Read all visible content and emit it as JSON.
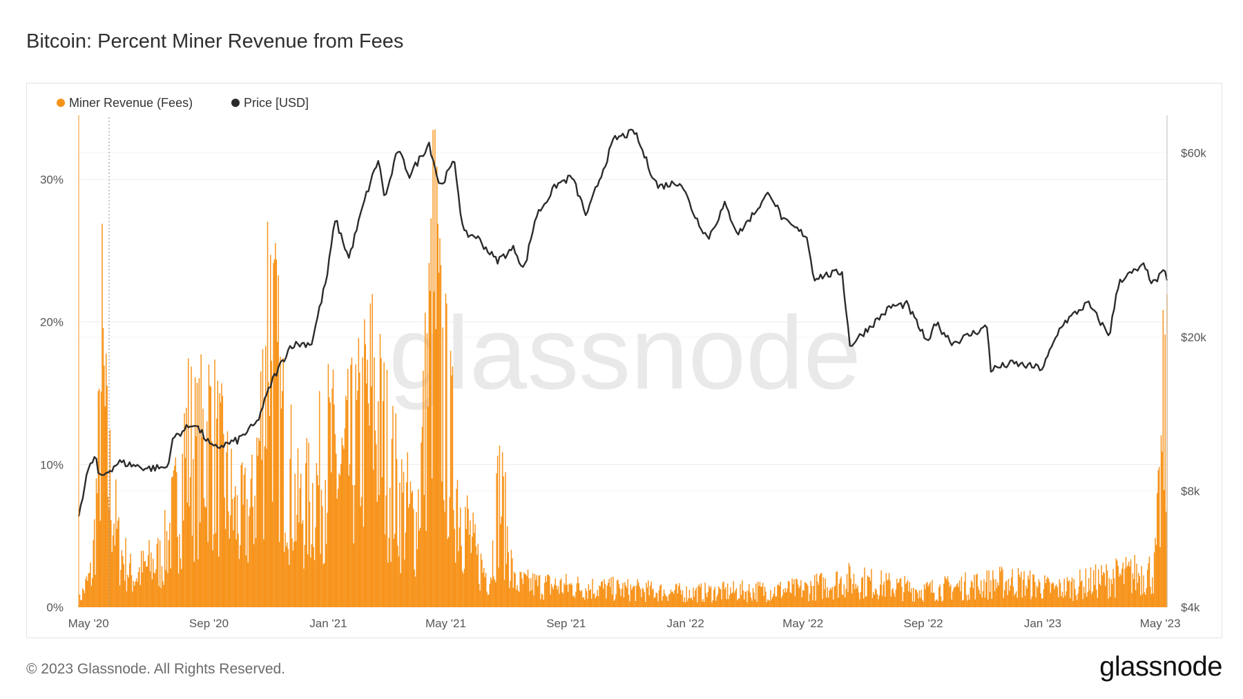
{
  "title": "Bitcoin: Percent Miner Revenue from Fees",
  "footer": "© 2023 Glassnode. All Rights Reserved.",
  "brand": "glassnode",
  "watermark": "glassnode",
  "colors": {
    "fees": "#f7931a",
    "price": "#2b2b2b",
    "grid": "#ececec"
  },
  "chart_data": {
    "type": "bar+line",
    "title": "Bitcoin: Percent Miner Revenue from Fees",
    "legend": [
      {
        "name": "Miner Revenue (Fees)",
        "color": "#f7931a"
      },
      {
        "name": "Price [USD]",
        "color": "#2b2b2b"
      }
    ],
    "x_ticks": [
      "May '20",
      "Sep '20",
      "Jan '21",
      "May '21",
      "Sep '21",
      "Jan '22",
      "May '22",
      "Sep '22",
      "Jan '23",
      "May '23"
    ],
    "x_range": [
      "2020-04-21",
      "2023-05-08"
    ],
    "y_left": {
      "label": "Miner Revenue (Fees)",
      "ticks": [
        "0%",
        "10%",
        "20%",
        "30%"
      ],
      "values": [
        0,
        10,
        20,
        30
      ],
      "ylim": [
        0,
        34.5
      ]
    },
    "y_right": {
      "label": "Price [USD]",
      "scale": "log",
      "ticks": [
        "$4k",
        "$8k",
        "$20k",
        "$60k"
      ],
      "values": [
        4000,
        8000,
        20000,
        60000
      ],
      "ylim": [
        4000,
        75000
      ]
    },
    "fees_percent_keypoints": [
      [
        "2020-04-21",
        0.5
      ],
      [
        "2020-05-05",
        3
      ],
      [
        "2020-05-12",
        13
      ],
      [
        "2020-05-15",
        20.5
      ],
      [
        "2020-05-20",
        12
      ],
      [
        "2020-06-01",
        5
      ],
      [
        "2020-06-15",
        2.5
      ],
      [
        "2020-07-01",
        3.5
      ],
      [
        "2020-07-15",
        4
      ],
      [
        "2020-08-01",
        9
      ],
      [
        "2020-08-10",
        14
      ],
      [
        "2020-08-20",
        12
      ],
      [
        "2020-09-01",
        15
      ],
      [
        "2020-09-15",
        11
      ],
      [
        "2020-10-01",
        7
      ],
      [
        "2020-10-15",
        8
      ],
      [
        "2020-10-27",
        17
      ],
      [
        "2020-11-01",
        27
      ],
      [
        "2020-11-05",
        22
      ],
      [
        "2020-11-15",
        14
      ],
      [
        "2020-12-01",
        8
      ],
      [
        "2020-12-15",
        9
      ],
      [
        "2021-01-01",
        13
      ],
      [
        "2021-01-15",
        11
      ],
      [
        "2021-02-01",
        14
      ],
      [
        "2021-02-15",
        17.5
      ],
      [
        "2021-03-01",
        13
      ],
      [
        "2021-03-15",
        9
      ],
      [
        "2021-04-01",
        7
      ],
      [
        "2021-04-10",
        16
      ],
      [
        "2021-04-20",
        28
      ],
      [
        "2021-04-25",
        20
      ],
      [
        "2021-05-05",
        14
      ],
      [
        "2021-05-15",
        9
      ],
      [
        "2021-06-01",
        4
      ],
      [
        "2021-06-15",
        2.5
      ],
      [
        "2021-06-25",
        10
      ],
      [
        "2021-07-10",
        2
      ],
      [
        "2022-01-01",
        1.2
      ],
      [
        "2022-05-01",
        1.5
      ],
      [
        "2022-06-15",
        2.3
      ],
      [
        "2022-09-01",
        1.4
      ],
      [
        "2022-12-01",
        2.2
      ],
      [
        "2023-01-15",
        1.5
      ],
      [
        "2023-03-15",
        2.5
      ],
      [
        "2023-04-25",
        3
      ],
      [
        "2023-05-01",
        9
      ],
      [
        "2023-05-04",
        15
      ],
      [
        "2023-05-08",
        16
      ]
    ],
    "price_usd_keypoints": [
      [
        "2020-04-21",
        6900
      ],
      [
        "2020-04-29",
        8800
      ],
      [
        "2020-05-08",
        9900
      ],
      [
        "2020-05-12",
        8600
      ],
      [
        "2020-06-01",
        9500
      ],
      [
        "2020-06-30",
        9150
      ],
      [
        "2020-07-20",
        9200
      ],
      [
        "2020-07-27",
        11000
      ],
      [
        "2020-08-17",
        12000
      ],
      [
        "2020-09-05",
        10300
      ],
      [
        "2020-09-30",
        10800
      ],
      [
        "2020-10-20",
        12000
      ],
      [
        "2020-11-05",
        15500
      ],
      [
        "2020-11-24",
        19100
      ],
      [
        "2020-12-15",
        19300
      ],
      [
        "2020-12-31",
        29000
      ],
      [
        "2021-01-08",
        40500
      ],
      [
        "2021-01-22",
        32000
      ],
      [
        "2021-02-08",
        46000
      ],
      [
        "2021-02-21",
        57500
      ],
      [
        "2021-02-28",
        45500
      ],
      [
        "2021-03-13",
        61000
      ],
      [
        "2021-03-25",
        52500
      ],
      [
        "2021-04-14",
        63500
      ],
      [
        "2021-04-25",
        49000
      ],
      [
        "2021-05-10",
        57000
      ],
      [
        "2021-05-19",
        37000
      ],
      [
        "2021-06-01",
        36500
      ],
      [
        "2021-06-22",
        31500
      ],
      [
        "2021-07-10",
        34000
      ],
      [
        "2021-07-20",
        29800
      ],
      [
        "2021-08-01",
        41000
      ],
      [
        "2021-08-22",
        49500
      ],
      [
        "2021-09-07",
        52000
      ],
      [
        "2021-09-22",
        41000
      ],
      [
        "2021-10-01",
        48000
      ],
      [
        "2021-10-20",
        65000
      ],
      [
        "2021-11-10",
        68000
      ],
      [
        "2021-11-26",
        54000
      ],
      [
        "2021-12-04",
        49000
      ],
      [
        "2021-12-27",
        50500
      ],
      [
        "2022-01-10",
        41500
      ],
      [
        "2022-01-24",
        36000
      ],
      [
        "2022-02-10",
        44000
      ],
      [
        "2022-02-24",
        37000
      ],
      [
        "2022-03-28",
        47500
      ],
      [
        "2022-04-11",
        40000
      ],
      [
        "2022-05-05",
        36500
      ],
      [
        "2022-05-12",
        28500
      ],
      [
        "2022-06-10",
        29500
      ],
      [
        "2022-06-18",
        19000
      ],
      [
        "2022-07-30",
        24000
      ],
      [
        "2022-08-15",
        24300
      ],
      [
        "2022-09-07",
        19000
      ],
      [
        "2022-09-12",
        22000
      ],
      [
        "2022-10-01",
        19300
      ],
      [
        "2022-11-05",
        21300
      ],
      [
        "2022-11-09",
        16500
      ],
      [
        "2022-12-01",
        17100
      ],
      [
        "2023-01-01",
        16600
      ],
      [
        "2023-01-20",
        21500
      ],
      [
        "2023-02-16",
        24500
      ],
      [
        "2023-03-10",
        20200
      ],
      [
        "2023-03-20",
        28000
      ],
      [
        "2023-04-14",
        30500
      ],
      [
        "2023-04-24",
        27500
      ],
      [
        "2023-05-05",
        29500
      ],
      [
        "2023-05-08",
        28500
      ]
    ]
  }
}
